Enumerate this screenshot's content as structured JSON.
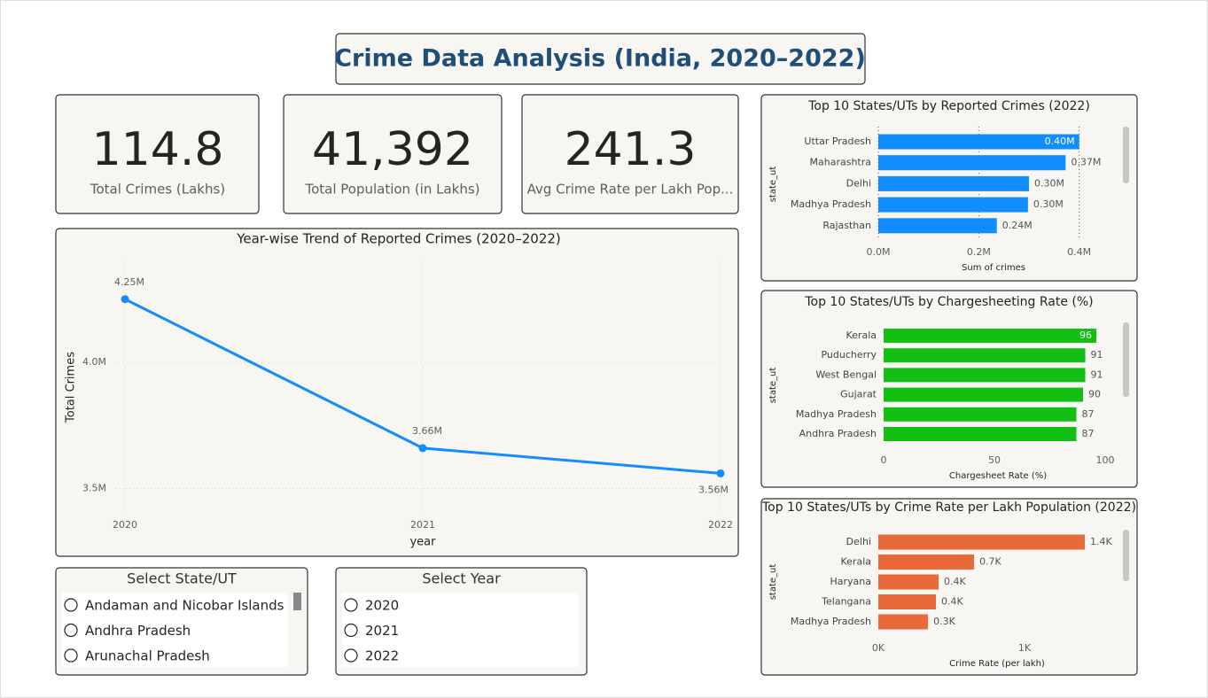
{
  "title": "Crime Data Analysis (India, 2020–2022)",
  "cards": [
    {
      "value": "114.8",
      "label": "Total Crimes (Lakhs)"
    },
    {
      "value": "41,392",
      "label": "Total Population (in Lakhs)"
    },
    {
      "value": "241.3",
      "label": "Avg Crime Rate per Lakh Pop..."
    }
  ],
  "slicers": [
    {
      "title": "Select State/UT",
      "options": [
        "Andaman and Nicobar Islands",
        "Andhra Pradesh",
        "Arunachal Pradesh"
      ]
    },
    {
      "title": "Select Year",
      "options": [
        "2020",
        "2021",
        "2022"
      ]
    }
  ],
  "chart_data": [
    {
      "type": "line",
      "title": "Year-wise Trend of Reported Crimes (2020–2022)",
      "x": [
        2020,
        2021,
        2022
      ],
      "values": [
        4250000,
        3660000,
        3560000
      ],
      "value_labels": [
        "4.25M",
        "3.66M",
        "3.56M"
      ],
      "color": "#118dff",
      "xlabel": "year",
      "ylabel": "Total Crimes",
      "xlim": [
        2020,
        2022
      ],
      "xticks": [
        2020,
        2021,
        2022
      ],
      "ylim": [
        3400000,
        4400000
      ],
      "yticks": [
        {
          "value": 3500000,
          "label": "3.5M"
        },
        {
          "value": 4000000,
          "label": "4.0M"
        }
      ],
      "grid": true
    },
    {
      "type": "bar",
      "orientation": "horizontal",
      "title": "Top 10 States/UTs by Reported Crimes (2022)",
      "categories": [
        "Uttar Pradesh",
        "Maharashtra",
        "Delhi",
        "Madhya Pradesh",
        "Rajasthan"
      ],
      "values": [
        400000,
        373000,
        300000,
        298000,
        236000
      ],
      "value_labels": [
        "0.40M",
        "0.37M",
        "0.30M",
        "0.30M",
        "0.24M"
      ],
      "color": "#118dff",
      "xlabel": "Sum of crimes",
      "ylabel": "state_ut",
      "xlim": [
        0,
        450000
      ],
      "xticks": [
        {
          "value": 0,
          "label": "0.0M"
        },
        {
          "value": 200000,
          "label": "0.2M"
        },
        {
          "value": 400000,
          "label": "0.4M"
        }
      ],
      "grid": true
    },
    {
      "type": "bar",
      "orientation": "horizontal",
      "title": "Top 10 States/UTs by Chargesheeting Rate (%)",
      "categories": [
        "Kerala",
        "Puducherry",
        "West Bengal",
        "Gujarat",
        "Madhya Pradesh",
        "Andhra Pradesh"
      ],
      "values": [
        96,
        91,
        91,
        90,
        87,
        87
      ],
      "color": "#12bf12",
      "xlabel": "Chargesheet Rate (%)",
      "ylabel": "state_ut",
      "xlim": [
        0,
        100
      ],
      "xticks": [
        0,
        50,
        100
      ],
      "grid": false
    },
    {
      "type": "bar",
      "orientation": "horizontal",
      "title": "Top 10 States/UTs by Crime Rate per Lakh Population (2022)",
      "categories": [
        "Delhi",
        "Kerala",
        "Haryana",
        "Telangana",
        "Madhya Pradesh"
      ],
      "values": [
        1412,
        655,
        412,
        394,
        340
      ],
      "value_labels": [
        "1.4K",
        "0.7K",
        "0.4K",
        "0.4K",
        "0.3K"
      ],
      "color": "#e8693a",
      "xlabel": "Crime Rate (per lakh)",
      "ylabel": "state_ut",
      "xlim": [
        0,
        1600
      ],
      "xticks": [
        {
          "value": 0,
          "label": "0K"
        },
        {
          "value": 1000,
          "label": "1K"
        }
      ],
      "grid": false
    }
  ]
}
